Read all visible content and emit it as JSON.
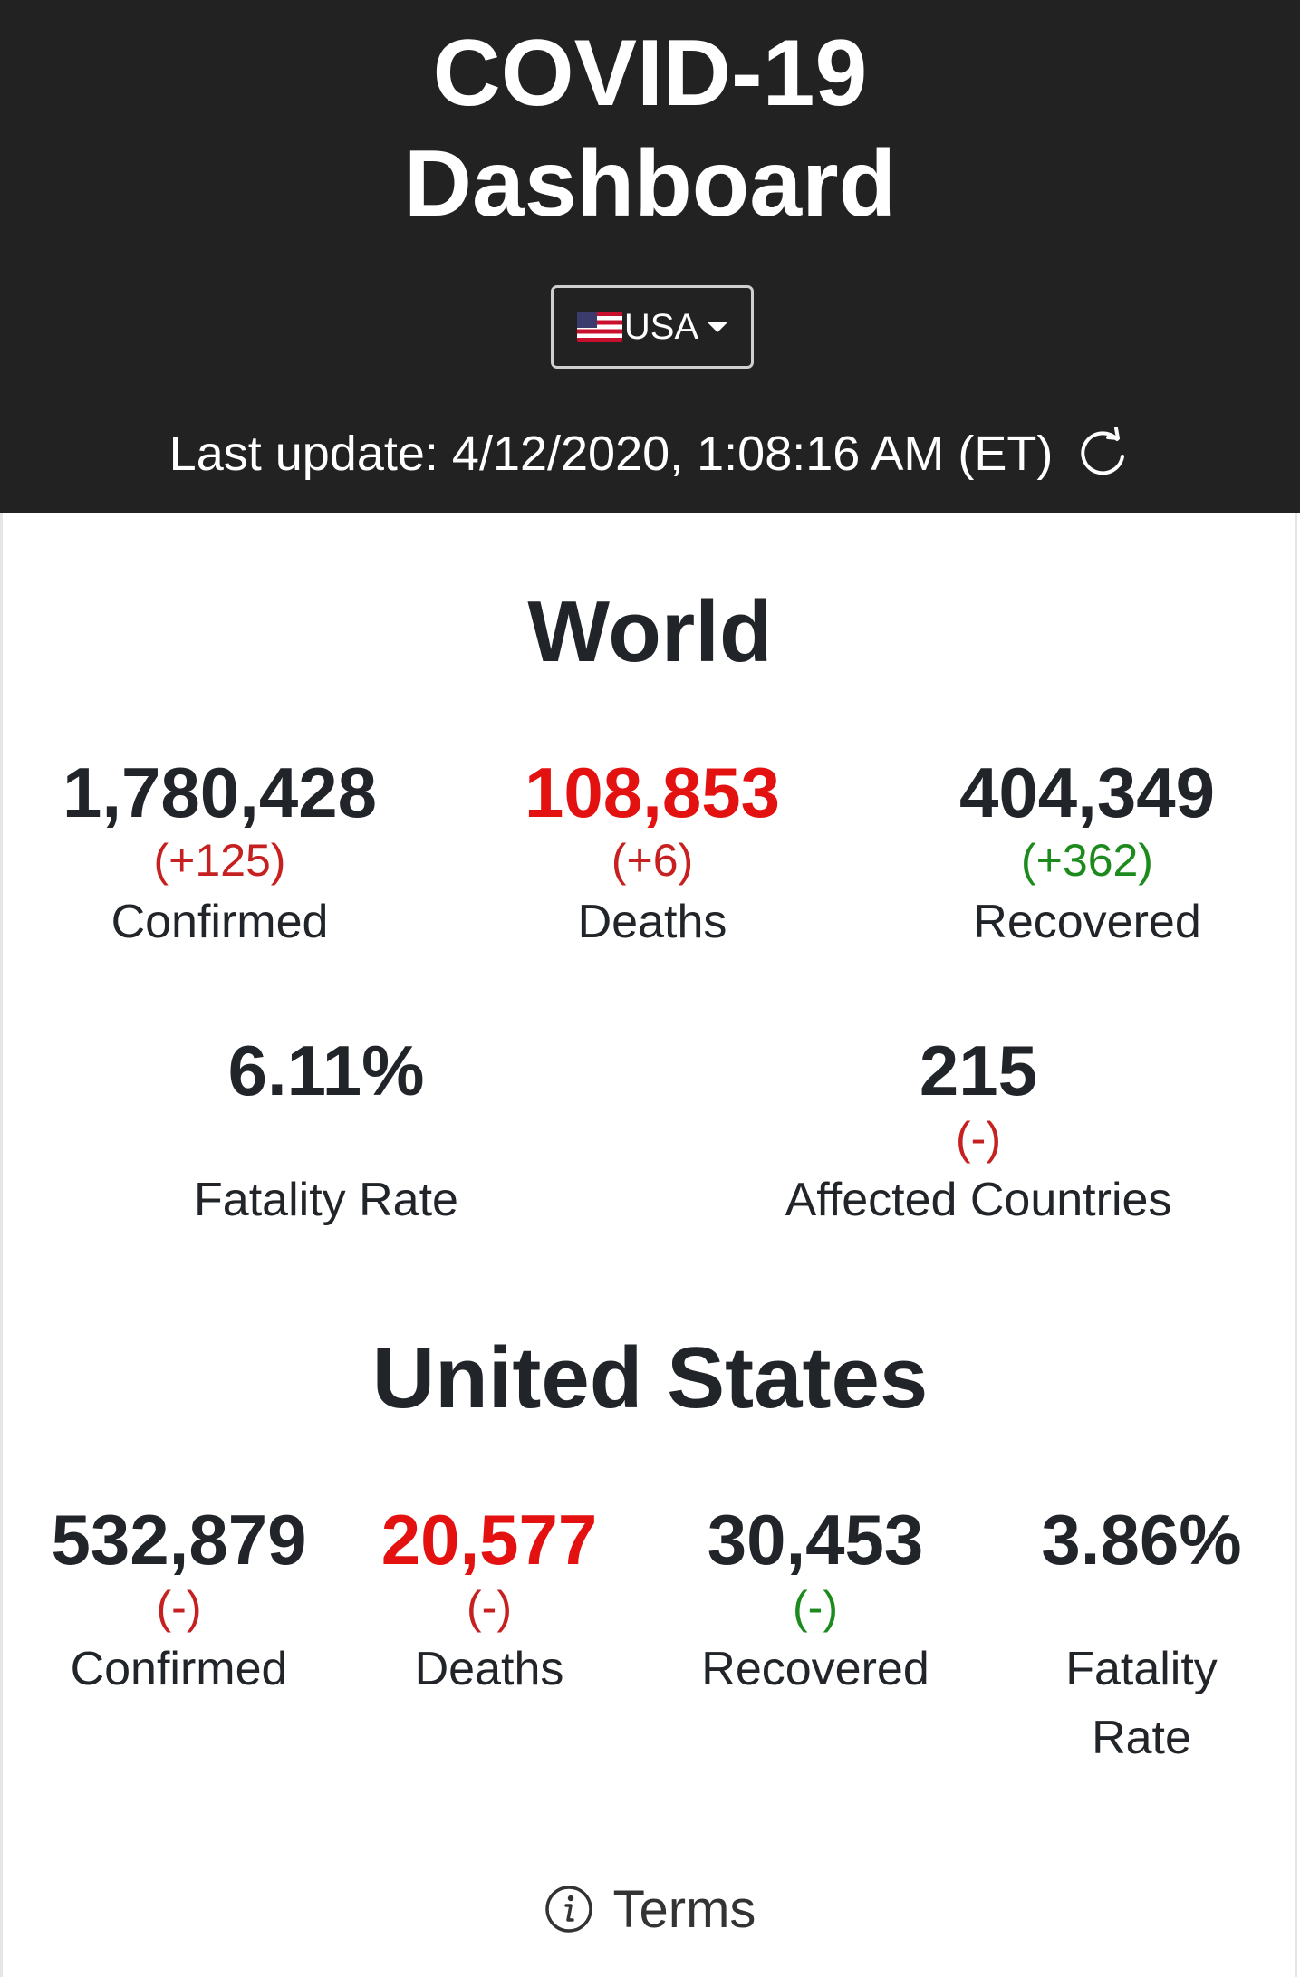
{
  "header": {
    "title_line1": "COVID-19",
    "title_line2": "Dashboard",
    "country_select": {
      "label": "USA",
      "flag": "us-flag-icon"
    },
    "last_update": "Last update: 4/12/2020, 1:08:16 AM (ET)",
    "refresh_icon": "refresh-icon"
  },
  "world": {
    "title": "World",
    "confirmed": {
      "value": "1,780,428",
      "change": "(+125)",
      "label": "Confirmed"
    },
    "deaths": {
      "value": "108,853",
      "change": "(+6)",
      "label": "Deaths"
    },
    "recovered": {
      "value": "404,349",
      "change": "(+362)",
      "label": "Recovered"
    },
    "fatality_rate": {
      "value": "6.11%",
      "label": "Fatality Rate"
    },
    "affected_countries": {
      "value": "215",
      "change": "(-)",
      "label": "Affected Countries"
    }
  },
  "us": {
    "title": "United States",
    "confirmed": {
      "value": "532,879",
      "change": "(-)",
      "label": "Confirmed"
    },
    "deaths": {
      "value": "20,577",
      "change": "(-)",
      "label": "Deaths"
    },
    "recovered": {
      "value": "30,453",
      "change": "(-)",
      "label": "Recovered"
    },
    "fatality_rate": {
      "value": "3.86%",
      "label_line1": "Fatality",
      "label_line2": "Rate"
    }
  },
  "footer": {
    "terms_label": "Terms",
    "icon": "info-icon"
  },
  "colors": {
    "header_bg": "#222222",
    "deaths_value": "#e41111",
    "change_negative": "#c62020",
    "change_positive": "#1c8a1c",
    "text": "#212529"
  }
}
